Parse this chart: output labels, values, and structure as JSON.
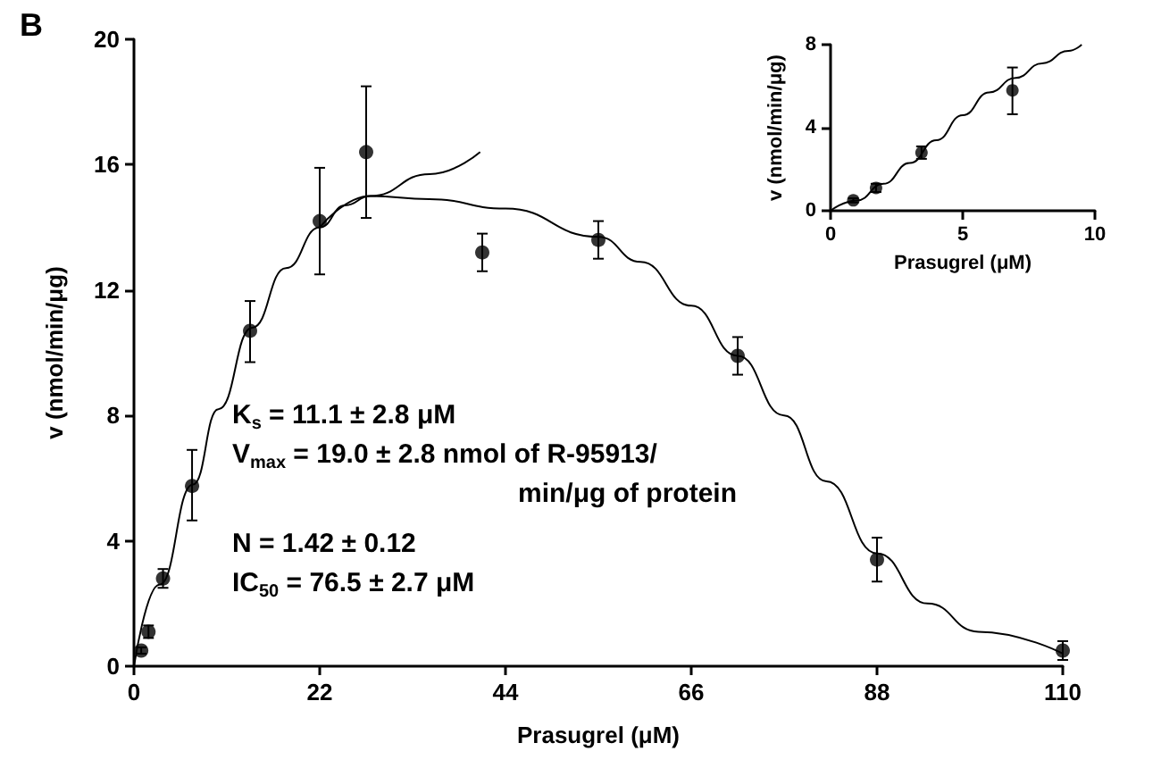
{
  "chart_data": [
    {
      "type": "scatter",
      "title": "B",
      "xlabel": "Prasugrel (μM)",
      "ylabel": "v (nmol/min/μg)",
      "xlim": [
        0,
        110
      ],
      "xticks": [
        0,
        22,
        44,
        66,
        88,
        110
      ],
      "ylim": [
        0,
        20
      ],
      "yticks": [
        0,
        4,
        8,
        12,
        16,
        20
      ],
      "grid": false,
      "marker": "circle",
      "annotations": [
        "K$_{s}$ = 11.1 ± 2.8 μM",
        "V$_{max}$ = 19.0 ± 2.8 nmol of R-95913/",
        "min/μg of protein",
        "N = 1.42 ± 0.12",
        "IC$_{50}$ = 76.5 ± 2.7 μM"
      ],
      "series": [
        {
          "color": "#000000",
          "x": [
            0.86,
            1.72,
            3.44,
            6.88,
            13.75,
            22,
            27.5,
            41.25,
            55,
            71.5,
            88,
            110
          ],
          "values": [
            0.5,
            1.1,
            2.8,
            5.75,
            10.7,
            14.2,
            16.4,
            13.2,
            13.6,
            9.9,
            3.4,
            0.5
          ],
          "errors": [
            0.1,
            0.2,
            0.3,
            [
              4.65,
              6.9
            ],
            [
              9.7,
              11.65
            ],
            [
              12.5,
              15.9
            ],
            [
              14.3,
              18.5
            ],
            [
              12.6,
              13.8
            ],
            [
              13.0,
              14.2
            ],
            [
              9.3,
              10.5
            ],
            [
              2.7,
              4.1
            ],
            [
              0.2,
              0.8
            ]
          ]
        },
        {
          "type": "line",
          "color": "#000000",
          "marker": "none",
          "x": [
            0,
            3,
            7,
            10,
            14,
            18,
            22,
            25,
            28,
            35,
            44,
            55,
            60,
            66,
            71.5,
            77,
            82,
            88,
            94,
            100,
            110
          ],
          "values": [
            0,
            2.6,
            5.8,
            8.2,
            10.8,
            12.7,
            14.0,
            14.7,
            15.0,
            14.9,
            14.6,
            13.7,
            12.9,
            11.5,
            9.9,
            8.0,
            5.9,
            3.6,
            2.0,
            1.1,
            0.4
          ]
        },
        {
          "type": "line",
          "color": "#000000",
          "marker": "none",
          "x": [
            22,
            28,
            35,
            41
          ],
          "values": [
            14.0,
            15.0,
            15.7,
            16.4
          ]
        }
      ]
    },
    {
      "type": "scatter",
      "xlabel": "Prasugrel (μM)",
      "ylabel": "v (nmol/min/μg)",
      "xlim": [
        0,
        10
      ],
      "xticks": [
        0,
        5,
        10
      ],
      "ylim": [
        0,
        8
      ],
      "yticks": [
        0,
        4,
        8
      ],
      "grid": false,
      "marker": "circle",
      "series": [
        {
          "color": "#000000",
          "x": [
            0.86,
            1.72,
            3.44,
            6.88
          ],
          "values": [
            0.5,
            1.1,
            2.8,
            5.8
          ],
          "errors": [
            0.1,
            0.2,
            0.3,
            [
              4.65,
              6.9
            ]
          ]
        },
        {
          "type": "line",
          "color": "#000000",
          "marker": "none",
          "x": [
            0,
            1,
            2,
            3,
            4,
            5,
            6,
            7,
            8,
            9,
            9.5
          ],
          "values": [
            0,
            0.5,
            1.3,
            2.3,
            3.4,
            4.6,
            5.7,
            6.4,
            7.1,
            7.7,
            8.0
          ]
        }
      ]
    }
  ]
}
